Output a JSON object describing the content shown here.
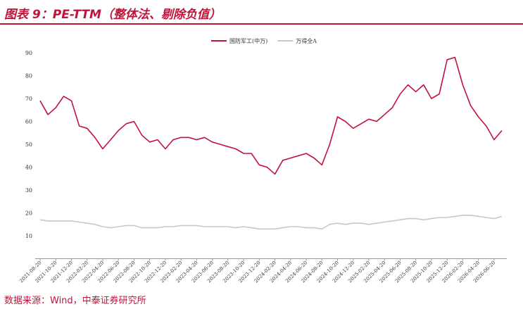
{
  "header": {
    "title": "图表 9：PE-TTM（整体法、剔除负值）"
  },
  "chart_data": {
    "type": "line",
    "categories": [
      "2021-08-20",
      null,
      "2021-10-20",
      null,
      "2021-12-20",
      null,
      "2022-02-20",
      null,
      "2022-04-20",
      null,
      "2022-06-20",
      null,
      "2022-08-20",
      null,
      "2022-10-20",
      null,
      "2022-12-20",
      null,
      "2023-02-20",
      null,
      "2023-04-20",
      null,
      "2023-06-20",
      null,
      "2023-08-20",
      null,
      "2023-10-20",
      null,
      "2023-12-20",
      null,
      "2024-02-20",
      null,
      "2024-04-20",
      null,
      "2024-06-20",
      null,
      "2024-08-20",
      null,
      "2024-10-20",
      null,
      "2024-12-20",
      null,
      "2025-02-20",
      null,
      "2025-04-20",
      null,
      "2025-06-20",
      null,
      "2025-08-20",
      null,
      "2025-10-20",
      null,
      "2025-12-20",
      null,
      "2026-02-20",
      null,
      "2026-04-20",
      null,
      "2026-06-20",
      null
    ],
    "series": [
      {
        "name": "国防军工(中万)",
        "color": "#c0143c",
        "values": [
          69,
          63,
          66,
          71,
          69,
          58,
          57,
          53,
          48,
          52,
          56,
          59,
          60,
          54,
          51,
          52,
          48,
          52,
          53,
          53,
          52,
          53,
          51,
          50,
          49,
          48,
          46,
          46,
          41,
          40,
          37,
          43,
          44,
          45,
          46,
          44,
          41,
          50,
          62,
          60,
          57,
          59,
          61,
          60,
          63,
          66,
          72,
          76,
          73,
          76,
          70,
          72,
          87,
          88,
          76,
          67,
          62,
          58,
          52,
          56
        ]
      },
      {
        "name": "万得全A",
        "color": "#c8c8c8",
        "values": [
          17,
          16.5,
          16.5,
          16.5,
          16.5,
          16,
          15.5,
          15,
          14,
          13.5,
          14,
          14.5,
          14.5,
          13.5,
          13.5,
          13.5,
          14,
          14,
          14.5,
          14.5,
          14.5,
          14,
          14,
          14,
          14,
          13.5,
          14,
          13.5,
          13,
          13,
          13,
          13.5,
          14,
          14,
          13.5,
          13.5,
          13,
          15,
          15.5,
          15,
          15.5,
          15.5,
          15,
          15.5,
          16,
          16.5,
          17,
          17.5,
          17.5,
          17,
          17.5,
          18,
          18,
          18.5,
          19,
          19,
          18.5,
          18,
          17.5,
          18.5
        ]
      }
    ],
    "ylim": [
      0,
      90
    ],
    "yticks": [
      10,
      20,
      30,
      40,
      50,
      60,
      70,
      80,
      90
    ],
    "grid": false,
    "legend": "top"
  },
  "footer": {
    "source": "数据来源：Wind，中泰证券研究所"
  }
}
